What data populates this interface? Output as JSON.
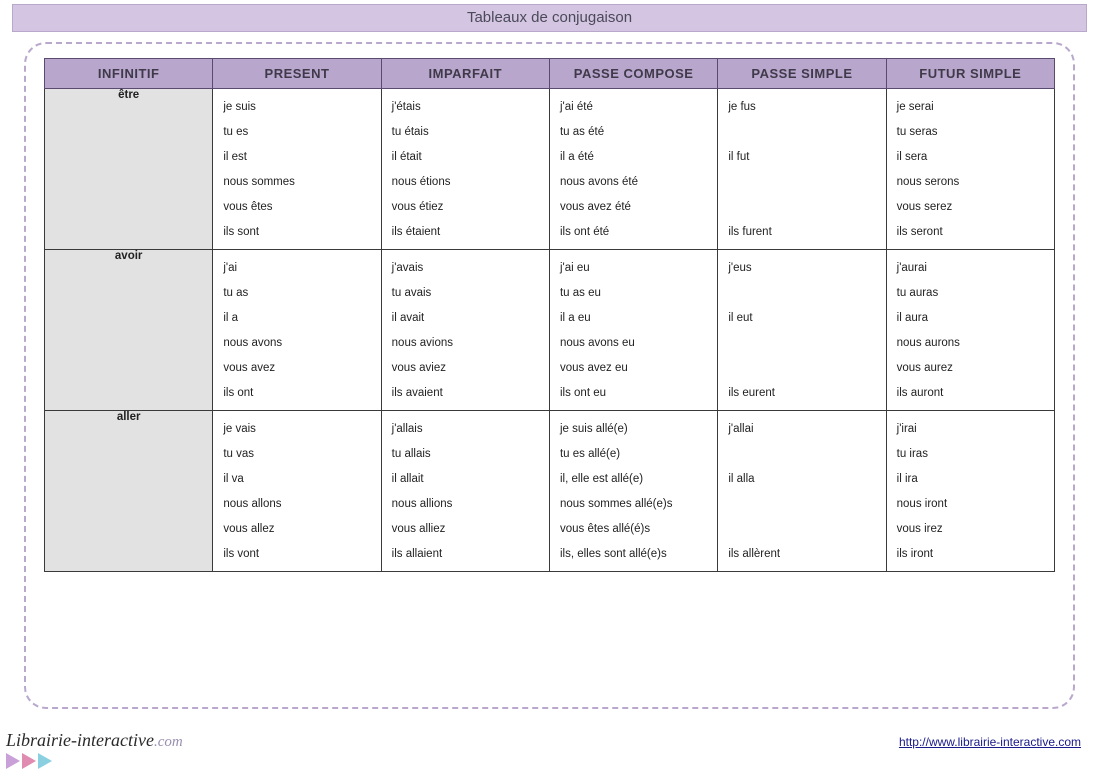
{
  "title": "Tableaux de conjugaison",
  "columns": [
    "INFINITIF",
    "PRESENT",
    "IMPARFAIT",
    "PASSE COMPOSE",
    "PASSE SIMPLE",
    "FUTUR SIMPLE"
  ],
  "colors": {
    "header_bg": "#b9a6cc",
    "title_bg": "#d4c5e2",
    "inf_bg": "#e2e2e2",
    "border": "#3a3a3a",
    "dash": "#b9a8cc"
  },
  "verbs": [
    {
      "inf": "être",
      "present": [
        "je suis",
        "tu es",
        "il est",
        "nous sommes",
        "vous êtes",
        "ils sont"
      ],
      "imparfait": [
        "j'étais",
        "tu étais",
        "il était",
        "nous étions",
        "vous étiez",
        "ils étaient"
      ],
      "passecomp": [
        "j'ai été",
        "tu as été",
        "il a été",
        "nous avons été",
        "vous avez été",
        "ils ont été"
      ],
      "passesimp": [
        "je fus",
        "",
        "il fut",
        "",
        "",
        "ils furent"
      ],
      "futur": [
        "je serai",
        "tu seras",
        "il sera",
        "nous serons",
        "vous serez",
        "ils seront"
      ]
    },
    {
      "inf": "avoir",
      "present": [
        "j'ai",
        "tu as",
        "il a",
        "nous avons",
        "vous avez",
        "ils ont"
      ],
      "imparfait": [
        "j'avais",
        "tu avais",
        "il avait",
        "nous avions",
        "vous aviez",
        "ils avaient"
      ],
      "passecomp": [
        "j'ai eu",
        "tu as eu",
        "il a eu",
        "nous avons eu",
        "vous avez eu",
        "ils ont eu"
      ],
      "passesimp": [
        "j'eus",
        "",
        "il eut",
        "",
        "",
        "ils eurent"
      ],
      "futur": [
        "j'aurai",
        "tu auras",
        "il aura",
        "nous aurons",
        "vous aurez",
        "ils auront"
      ]
    },
    {
      "inf": "aller",
      "present": [
        "je vais",
        "tu vas",
        "il va",
        "nous allons",
        "vous allez",
        "ils vont"
      ],
      "imparfait": [
        "j'allais",
        "tu allais",
        "il allait",
        "nous allions",
        "vous alliez",
        "ils allaient"
      ],
      "passecomp": [
        "je suis allé(e)",
        "tu es allé(e)",
        "il, elle est allé(e)",
        "nous sommes allé(e)s",
        "vous êtes allé(é)s",
        "ils, elles sont allé(e)s"
      ],
      "passesimp": [
        "j'allai",
        "",
        "il alla",
        "",
        "",
        "ils allèrent"
      ],
      "futur": [
        "j'irai",
        "tu iras",
        "il ira",
        "nous iront",
        "vous irez",
        "ils iront"
      ]
    }
  ],
  "footer": {
    "brand_main": "Librairie-interactive",
    "brand_dom": ".com",
    "url": "http://www.librairie-interactive.com",
    "tri_colors": [
      "#c9a0d8",
      "#e08bb0",
      "#8bd0e0"
    ]
  }
}
